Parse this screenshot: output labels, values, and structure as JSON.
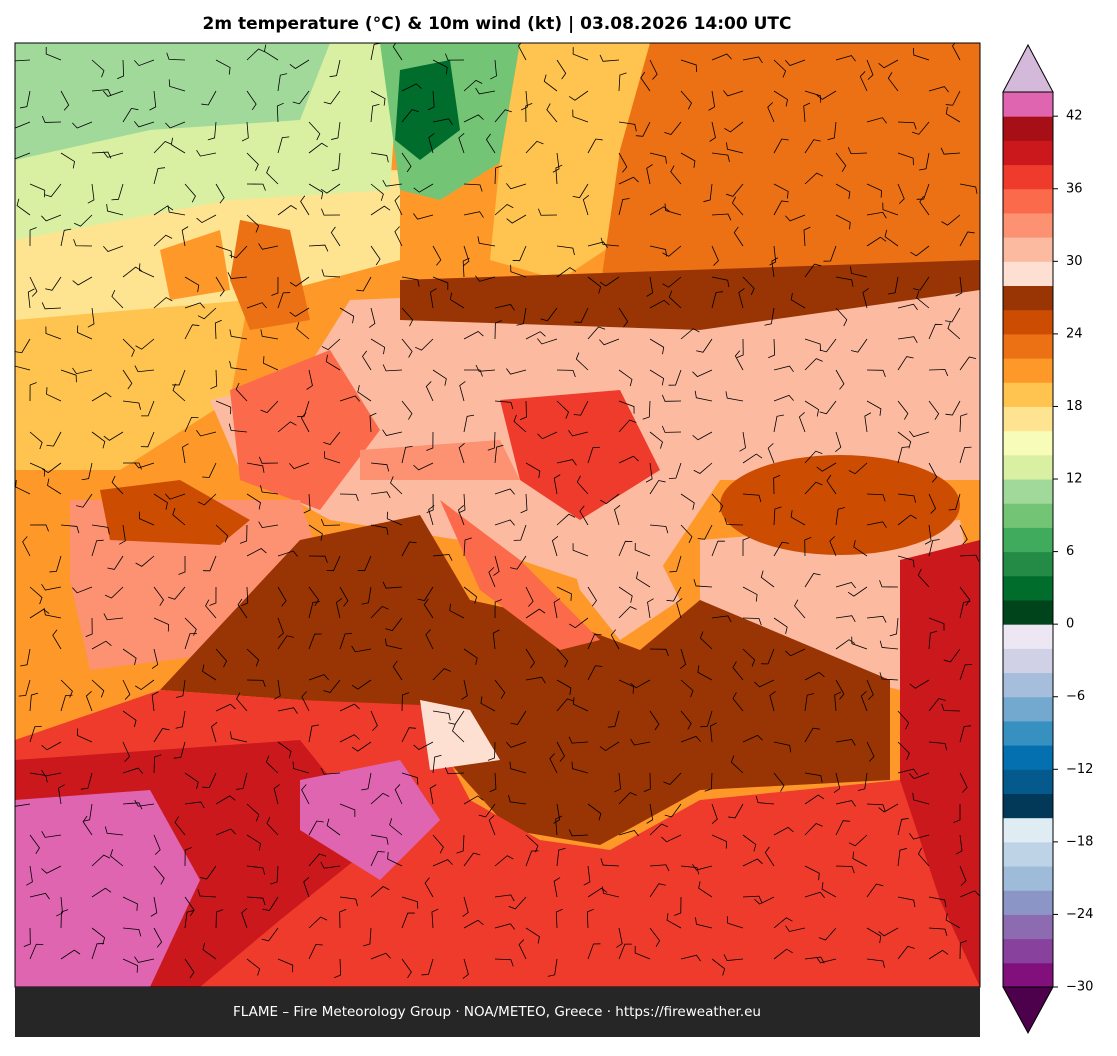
{
  "title": "2m temperature (°C) & 10m wind (kt)  |  03.08.2026 14:00 UTC",
  "footer": "FLAME – Fire Meteorology Group · NOA/METEO, Greece · https://fireweather.eu",
  "colorbar": {
    "lim": [
      -30,
      44
    ],
    "colors": [
      "#810f7c",
      "#88419d",
      "#8c6bb1",
      "#8c96c6",
      "#9ebcda",
      "#bfd3e6",
      "#e0ecf4",
      "#023858",
      "#045a8d",
      "#0570b0",
      "#3690c0",
      "#74a9cf",
      "#a6bddb",
      "#d0d1e6",
      "#ece7f2",
      "#00441b",
      "#006d2c",
      "#238b45",
      "#41ab5d",
      "#74c476",
      "#a1d99b",
      "#d9f0a3",
      "#f7fcb9",
      "#fee391",
      "#fec44f",
      "#fe9929",
      "#ec7014",
      "#cc4c02",
      "#993404",
      "#fee0d2",
      "#fcbba1",
      "#fc9272",
      "#fb6a4a",
      "#ef3b2c",
      "#cb181d",
      "#a50f15",
      "#df65b0"
    ],
    "over_color": "#d4b9da",
    "under_color": "#4d004b",
    "ticks": [
      {
        "value": -30,
        "label": "−30"
      },
      {
        "value": -24,
        "label": "−24"
      },
      {
        "value": -18,
        "label": "−18"
      },
      {
        "value": -12,
        "label": "−12"
      },
      {
        "value": -6,
        "label": "−6"
      },
      0,
      6,
      12,
      18,
      24,
      30,
      36,
      42
    ]
  }
}
